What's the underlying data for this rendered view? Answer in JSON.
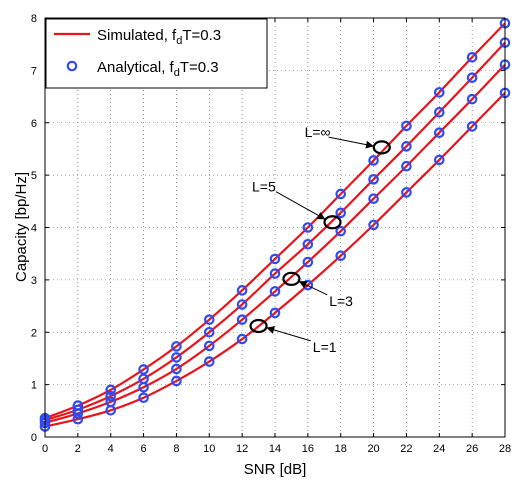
{
  "chart_data": {
    "type": "line",
    "xlabel": "SNR [dB]",
    "ylabel": "Capacity [bp/Hz]",
    "xlim": [
      0,
      28
    ],
    "ylim": [
      0,
      8
    ],
    "xticks": [
      "0",
      "2",
      "4",
      "6",
      "8",
      "10",
      "12",
      "14",
      "16",
      "18",
      "20",
      "22",
      "24",
      "26",
      "28"
    ],
    "yticks": [
      "0",
      "1",
      "2",
      "3",
      "4",
      "5",
      "6",
      "7",
      "8"
    ],
    "grid": true,
    "legend_position": "top-left",
    "legend": [
      {
        "text": "Simulated, f",
        "sub": "d",
        "tail": "T=0.3",
        "style": "line",
        "color": "#e8141b"
      },
      {
        "text": "Analytical, f",
        "sub": "d",
        "tail": "T=0.3",
        "style": "marker",
        "color": "#2f4bf2"
      }
    ],
    "x": [
      0,
      2,
      4,
      6,
      8,
      10,
      12,
      14,
      16,
      18,
      20,
      22,
      24,
      26,
      28
    ],
    "analytical_x": [
      0,
      2,
      4,
      6,
      8,
      10,
      12,
      14,
      16,
      18,
      20,
      22,
      24,
      26,
      28
    ],
    "series": [
      {
        "name": "L=∞",
        "values": [
          0.36,
          0.6,
          0.9,
          1.29,
          1.73,
          2.24,
          2.8,
          3.4,
          4.0,
          4.64,
          5.28,
          5.94,
          6.58,
          7.25,
          7.9
        ]
      },
      {
        "name": "L=5",
        "values": [
          0.32,
          0.52,
          0.78,
          1.11,
          1.52,
          2.0,
          2.53,
          3.12,
          3.68,
          4.28,
          4.92,
          5.55,
          6.2,
          6.86,
          7.53
        ]
      },
      {
        "name": "L=3",
        "values": [
          0.27,
          0.45,
          0.67,
          0.95,
          1.3,
          1.74,
          2.24,
          2.78,
          3.34,
          3.93,
          4.55,
          5.17,
          5.81,
          6.45,
          7.11
        ]
      },
      {
        "name": "L=1",
        "values": [
          0.2,
          0.34,
          0.51,
          0.75,
          1.07,
          1.44,
          1.87,
          2.37,
          2.9,
          3.46,
          4.05,
          4.67,
          5.29,
          5.93,
          6.57
        ]
      }
    ],
    "annotations": [
      {
        "text": "L=∞",
        "x": 20.5,
        "y": 5.53,
        "label_x": 15.8,
        "label_y": 5.82,
        "label_anchor": "start"
      },
      {
        "text": "L=5",
        "x": 17.5,
        "y": 4.1,
        "label_x": 12.6,
        "label_y": 4.78,
        "label_anchor": "start"
      },
      {
        "text": "L=3",
        "x": 15.0,
        "y": 3.02,
        "label_x": 17.3,
        "label_y": 2.6,
        "label_anchor": "start"
      },
      {
        "text": "L=1",
        "x": 13.0,
        "y": 2.12,
        "label_x": 16.3,
        "label_y": 1.72,
        "label_anchor": "start"
      }
    ]
  }
}
